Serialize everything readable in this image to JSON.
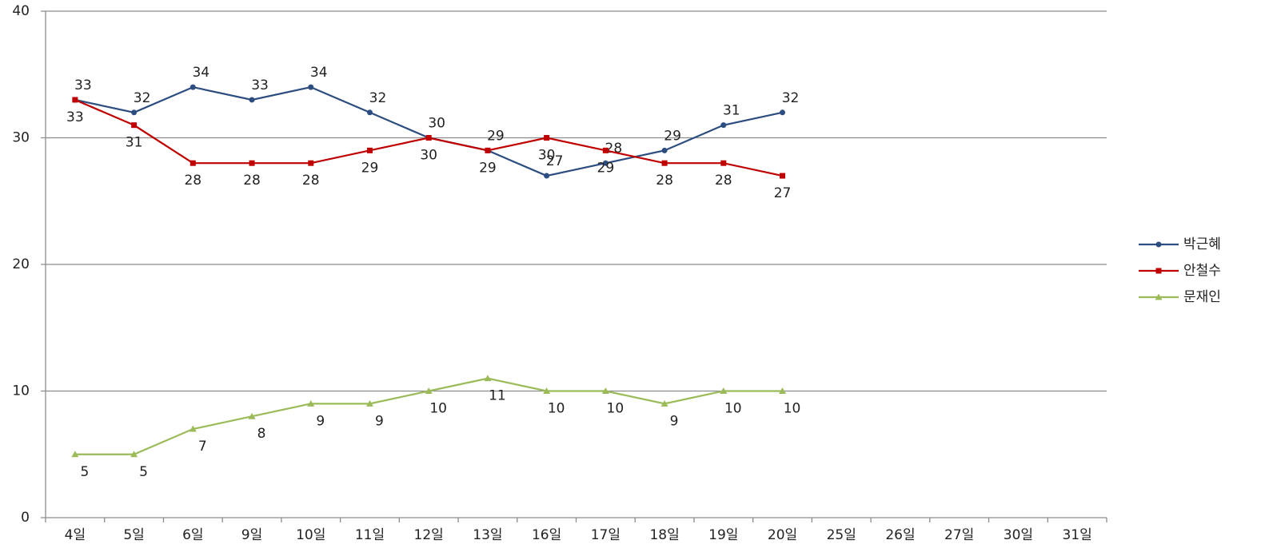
{
  "chart_data": {
    "type": "line",
    "categories": [
      "4일",
      "5일",
      "6일",
      "9일",
      "10일",
      "11일",
      "12일",
      "13일",
      "16일",
      "17일",
      "18일",
      "19일",
      "20일",
      "25일",
      "26일",
      "27일",
      "30일",
      "31일"
    ],
    "series": [
      {
        "name": "박근혜",
        "color": "#2c4d80",
        "marker": "circle",
        "values": [
          33,
          32,
          34,
          33,
          34,
          32,
          30,
          29,
          27,
          28,
          29,
          31,
          32,
          null,
          null,
          null,
          null,
          null
        ]
      },
      {
        "name": "안철수",
        "color": "#c00000",
        "marker": "square",
        "values": [
          33,
          31,
          28,
          28,
          28,
          29,
          30,
          29,
          30,
          29,
          28,
          28,
          27,
          null,
          null,
          null,
          null,
          null
        ]
      },
      {
        "name": "문재인",
        "color": "#9bbb59",
        "marker": "triangle",
        "values": [
          5,
          5,
          7,
          8,
          9,
          9,
          10,
          11,
          10,
          10,
          9,
          10,
          10,
          null,
          null,
          null,
          null,
          null
        ]
      }
    ],
    "ylim": [
      0,
      40
    ],
    "yticks": [
      0,
      10,
      20,
      30,
      40
    ],
    "grid": true,
    "legend": "right"
  }
}
